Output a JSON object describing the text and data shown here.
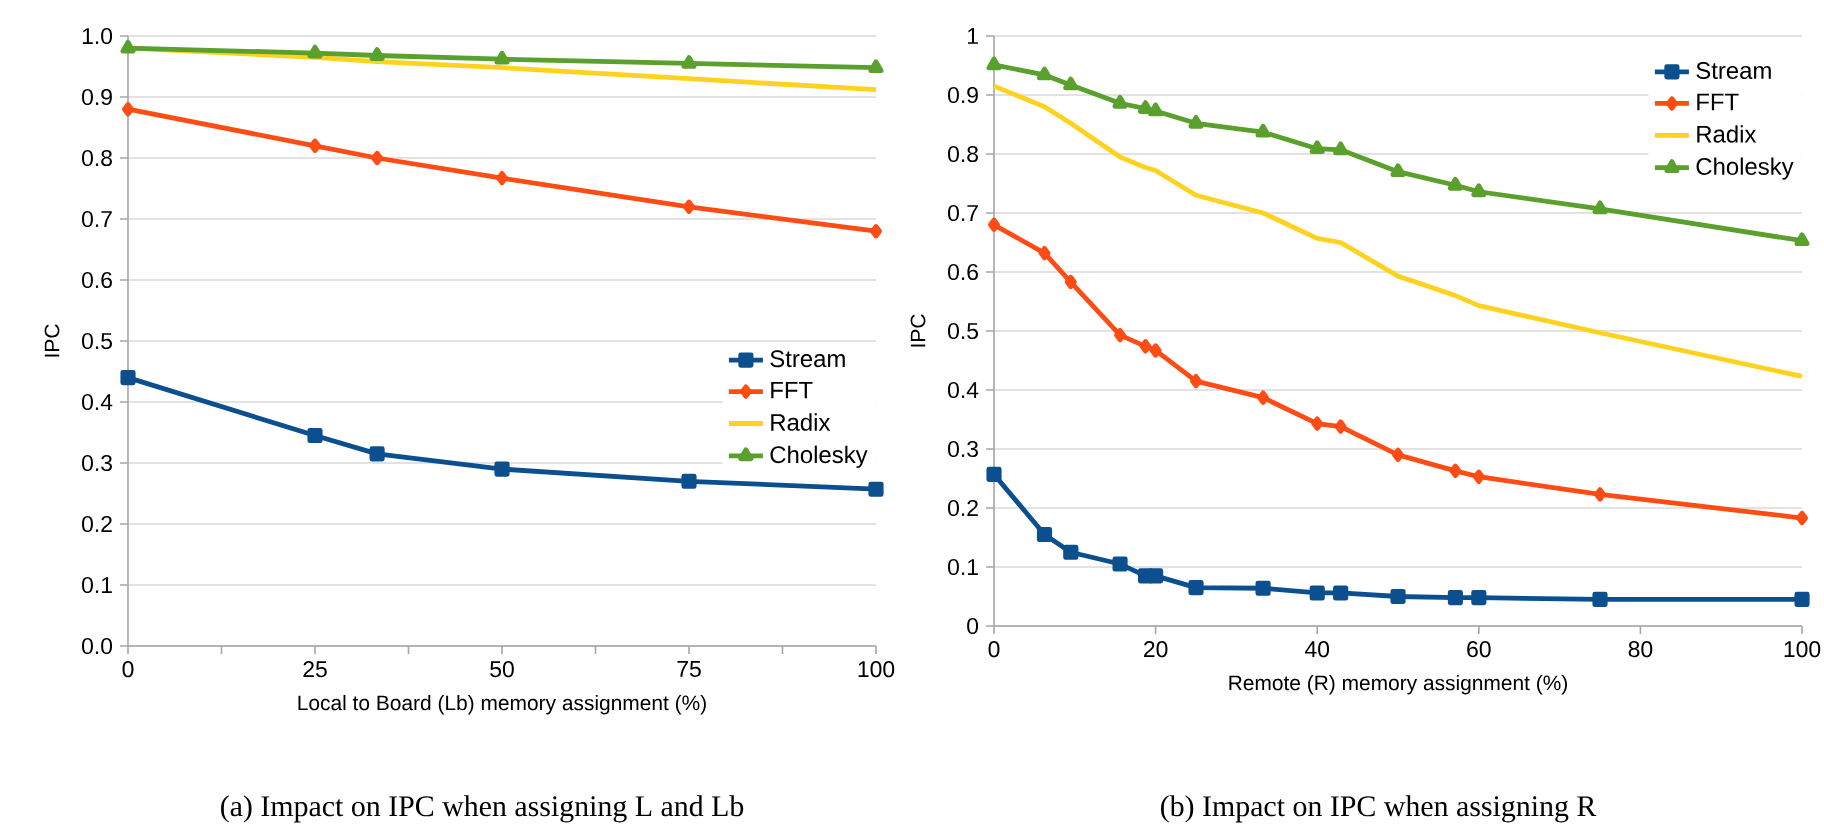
{
  "chart_data": [
    {
      "type": "line",
      "title": "(a) Impact on IPC when assigning L and Lb",
      "xlabel": "Local to Board (Lb) memory assignment (%)",
      "ylabel": "IPC",
      "x": [
        0,
        25,
        33.3,
        50,
        75,
        100
      ],
      "xlim": [
        0,
        100
      ],
      "xticks": [
        0,
        {
          "value": 12.5,
          "label": null
        },
        25,
        {
          "value": 37.5,
          "label": null
        },
        50,
        {
          "value": 62.5,
          "label": null
        },
        75,
        {
          "value": 87.5,
          "label": null
        },
        100
      ],
      "ylim": [
        0,
        1
      ],
      "yticks": [
        {
          "value": 0,
          "label": "0.0"
        },
        0.1,
        0.2,
        0.3,
        0.4,
        0.5,
        0.6,
        0.7,
        0.8,
        0.9,
        {
          "value": 1,
          "label": "1.0"
        }
      ],
      "grid": "y",
      "legend": "right",
      "line_style": "solid",
      "series": [
        {
          "name": "Stream",
          "color": "#0b4f8f",
          "marker": "square",
          "values": [
            0.44,
            0.345,
            0.315,
            0.29,
            0.27,
            0.257
          ]
        },
        {
          "name": "FFT",
          "color": "#ff4b14",
          "marker": "diamond",
          "values": [
            0.88,
            0.82,
            0.8,
            0.767,
            0.72,
            0.68
          ]
        },
        {
          "name": "Radix",
          "color": "#ffd21f",
          "marker": "none",
          "values": [
            0.98,
            0.965,
            0.958,
            0.948,
            0.93,
            0.912
          ]
        },
        {
          "name": "Cholesky",
          "color": "#5aa02c",
          "marker": "triangle",
          "values": [
            0.98,
            0.972,
            0.968,
            0.962,
            0.955,
            0.948
          ]
        }
      ]
    },
    {
      "type": "line",
      "title": "(b) Impact on IPC when assigning R",
      "xlabel": "Remote (R) memory assignment (%)",
      "ylabel": "IPC",
      "x": [
        0,
        6.25,
        9.5,
        15.6,
        18.75,
        20,
        25,
        33.3,
        40,
        42.9,
        50,
        57.1,
        60,
        75,
        100
      ],
      "xlim": [
        0,
        100
      ],
      "xticks": [
        0,
        20,
        40,
        60,
        80,
        100
      ],
      "ylim": [
        0,
        1
      ],
      "yticks": [
        0,
        0.1,
        0.2,
        0.3,
        0.4,
        0.5,
        0.6,
        0.7,
        0.8,
        0.9,
        1
      ],
      "grid": "y",
      "legend": "top right",
      "line_style": "solid",
      "series": [
        {
          "name": "Stream",
          "color": "#0b4f8f",
          "marker": "square",
          "values": [
            0.257,
            0.155,
            0.125,
            0.105,
            0.085,
            0.085,
            0.065,
            0.064,
            0.056,
            0.056,
            0.05,
            0.048,
            0.048,
            0.045,
            0.045
          ]
        },
        {
          "name": "FFT",
          "color": "#ff4b14",
          "marker": "diamond",
          "values": [
            0.68,
            0.632,
            0.583,
            0.493,
            0.474,
            0.467,
            0.415,
            0.387,
            0.343,
            0.338,
            0.29,
            0.263,
            0.253,
            0.223,
            0.183
          ]
        },
        {
          "name": "Radix",
          "color": "#ffd21f",
          "marker": "none",
          "values": [
            0.915,
            0.88,
            0.852,
            0.795,
            0.777,
            0.772,
            0.73,
            0.7,
            0.657,
            0.65,
            0.593,
            0.56,
            0.543,
            0.497,
            0.423
          ]
        },
        {
          "name": "Cholesky",
          "color": "#5aa02c",
          "marker": "triangle",
          "values": [
            0.951,
            0.934,
            0.917,
            0.886,
            0.877,
            0.873,
            0.852,
            0.837,
            0.809,
            0.807,
            0.77,
            0.747,
            0.736,
            0.707,
            0.653
          ]
        }
      ]
    }
  ]
}
